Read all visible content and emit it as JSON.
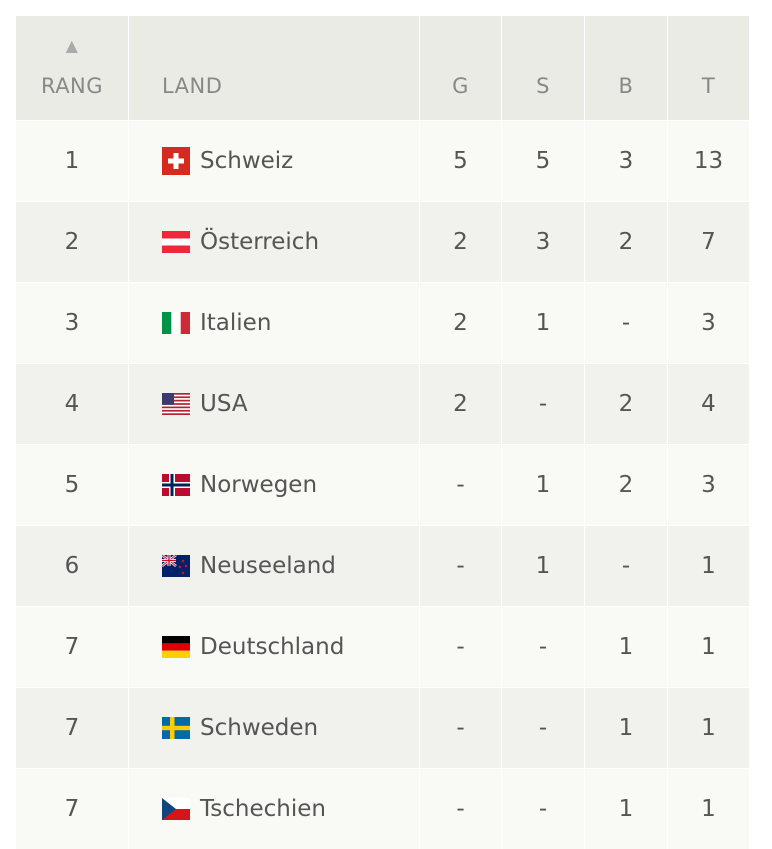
{
  "table": {
    "header": [
      "RANG",
      "LAND",
      "G",
      "S",
      "B",
      "T"
    ],
    "rows": [
      [
        "1",
        "Schweiz",
        "5",
        "5",
        "3",
        "13"
      ],
      [
        "2",
        "Österreich",
        "2",
        "3",
        "2",
        "7"
      ],
      [
        "3",
        "Italien",
        "2",
        "1",
        "-",
        "3"
      ],
      [
        "4",
        "USA",
        "2",
        "-",
        "2",
        "4"
      ],
      [
        "5",
        "Norwegen",
        "-",
        "1",
        "2",
        "3"
      ],
      [
        "6",
        "Neuseeland",
        "-",
        "1",
        "-",
        "1"
      ],
      [
        "7",
        "Deutschland",
        "-",
        "-",
        "1",
        "1"
      ],
      [
        "7",
        "Schweden",
        "-",
        "-",
        "1",
        "1"
      ],
      [
        "7",
        "Tschechien",
        "-",
        "-",
        "1",
        "1"
      ]
    ]
  }
}
